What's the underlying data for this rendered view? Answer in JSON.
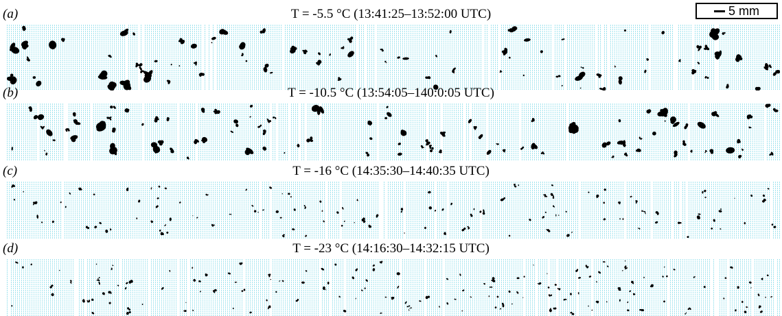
{
  "scale_bar": {
    "label": "5 mm"
  },
  "panels": [
    {
      "letter": "(a)",
      "title": "T = -5.5 °C (13:41:25–13:52:00 UTC)",
      "particle_size": "large",
      "particle_count": 95
    },
    {
      "letter": "(b)",
      "title": "T = -10.5 °C (13:54:05–140:0:05 UTC)",
      "particle_size": "large",
      "particle_count": 110
    },
    {
      "letter": "(c)",
      "title": "T = -16 °C (14:35:30–14:40:35 UTC)",
      "particle_size": "small",
      "particle_count": 140
    },
    {
      "letter": "(d)",
      "title": "T = -23 °C (14:16:30–14:32:15 UTC)",
      "particle_size": "small",
      "particle_count": 170
    }
  ],
  "colors": {
    "background_lines": "#9fe3ee",
    "particles": "#000000"
  }
}
